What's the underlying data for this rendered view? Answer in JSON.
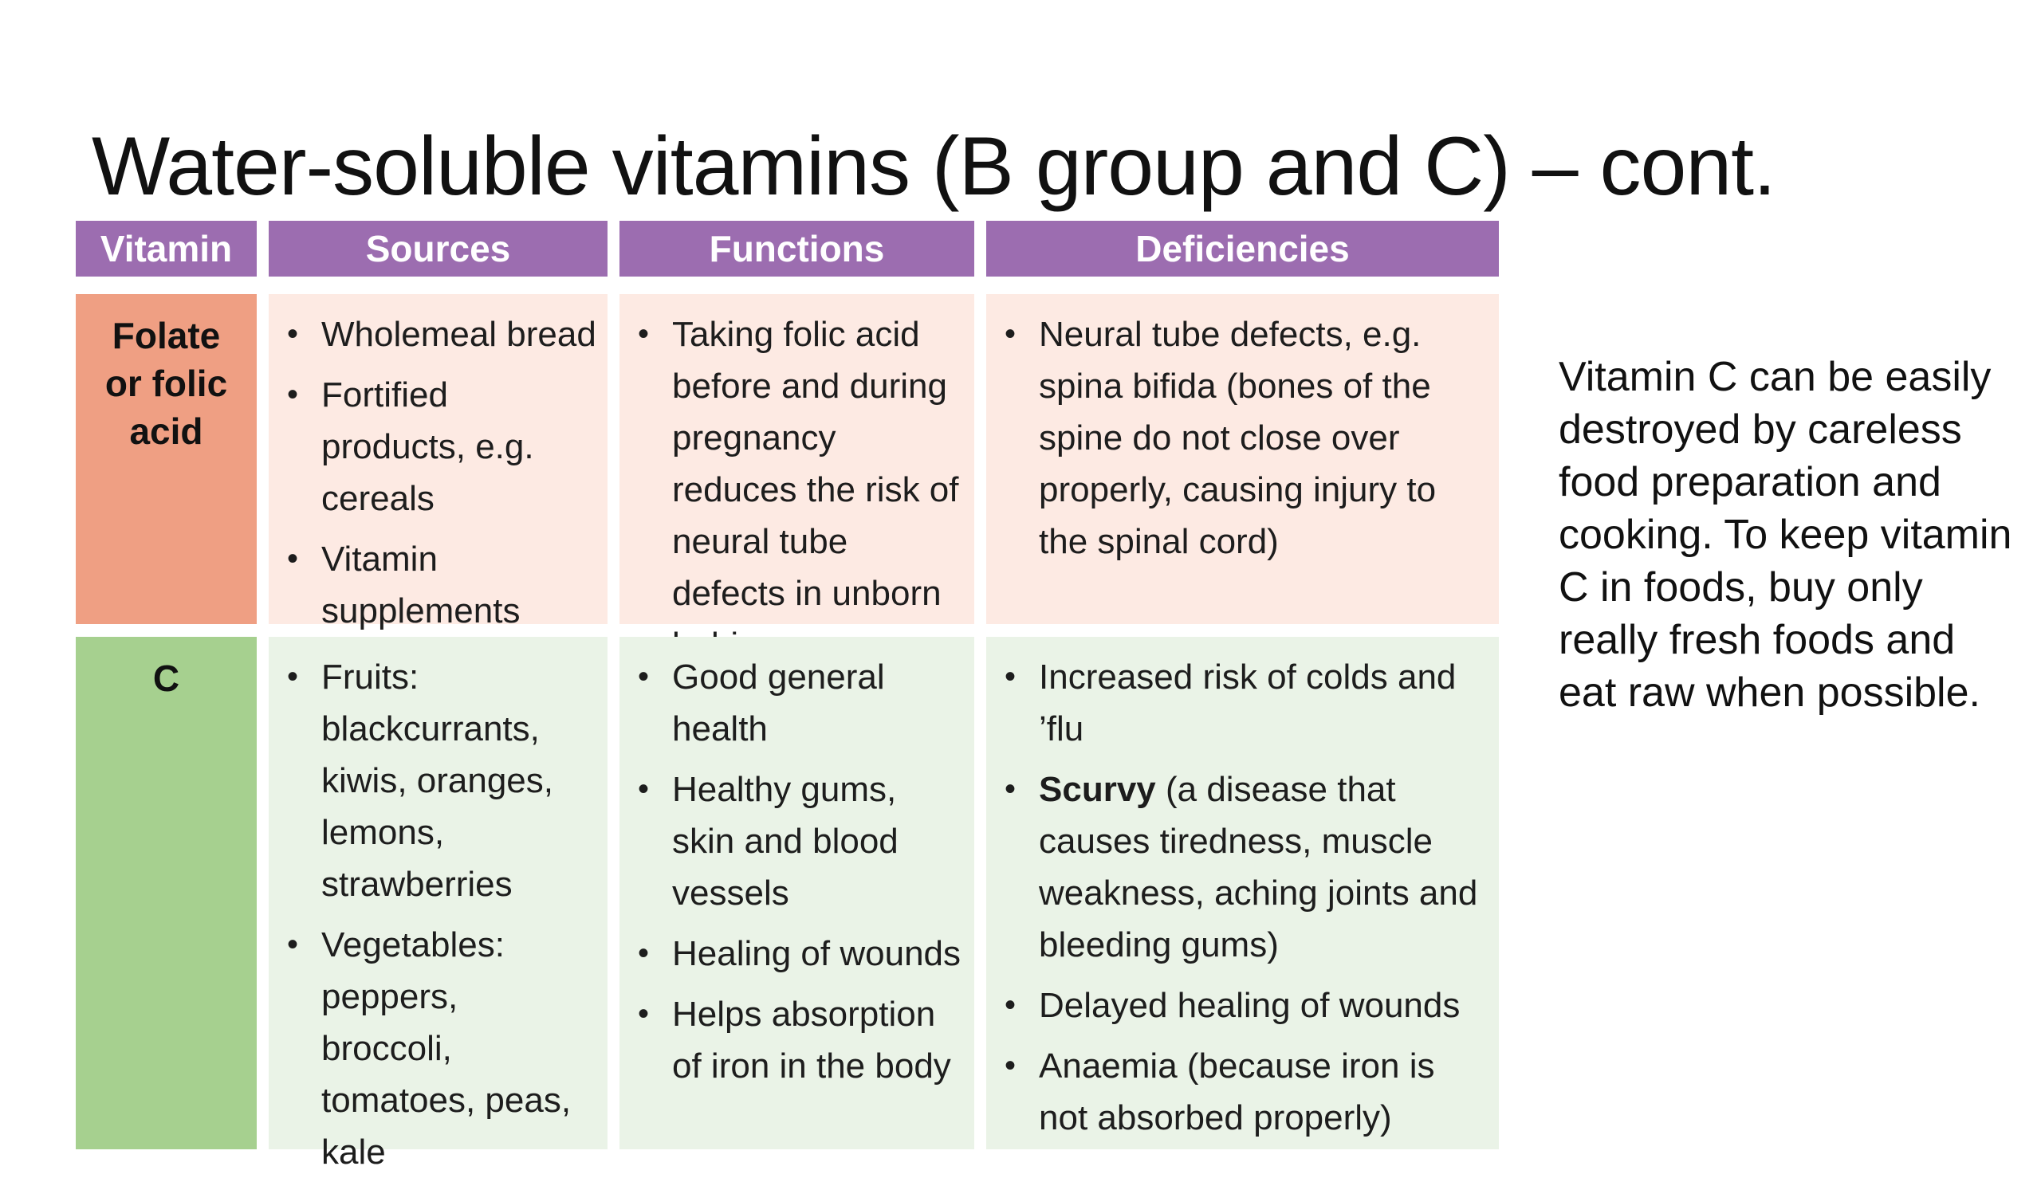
{
  "title": "Water-soluble vitamins (B group and C) – cont.",
  "headers": {
    "vitamin": "Vitamin",
    "sources": "Sources",
    "functions": "Functions",
    "deficiencies": "Deficiencies"
  },
  "rows": [
    {
      "vitamin": [
        "Folate",
        "or folic",
        "acid"
      ],
      "sources": [
        "Wholemeal bread",
        "Fortified products, e.g. cereals",
        "Vitamin supplements"
      ],
      "functions": [
        "Taking folic acid before and during pregnancy reduces the risk of neural tube defects in unborn babies"
      ],
      "deficiencies": [
        "Neural tube defects, e.g. spina bifida (bones of the spine do not close over properly, causing injury to the spinal cord)"
      ]
    },
    {
      "vitamin": [
        "C"
      ],
      "sources": [
        "Fruits: blackcurrants, kiwis, oranges, lemons, strawberries",
        "Vegetables: peppers, broccoli, tomatoes, peas, kale"
      ],
      "functions": [
        "Good general health",
        "Healthy gums, skin and blood vessels",
        "Healing of wounds",
        "Helps absorption of iron in the body"
      ],
      "deficiencies": [
        "Increased risk of colds and ’flu",
        {
          "bold": "Scurvy",
          "rest": " (a disease that causes tiredness, muscle weakness, aching joints and bleeding gums)"
        },
        "Delayed healing of wounds",
        "Anaemia (because iron is not absorbed properly)"
      ]
    }
  ],
  "side_note": "Vitamin C can be easily destroyed by careless food preparation and cooking. To keep vitamin C in foods, buy only really fresh foods and eat raw when possible.",
  "colors": {
    "header": "#9c6db0",
    "folate_label": "#ef9f83",
    "folate_row": "#fdeae3",
    "vitc_label": "#a6d08f",
    "vitc_row": "#eaf3e7"
  }
}
